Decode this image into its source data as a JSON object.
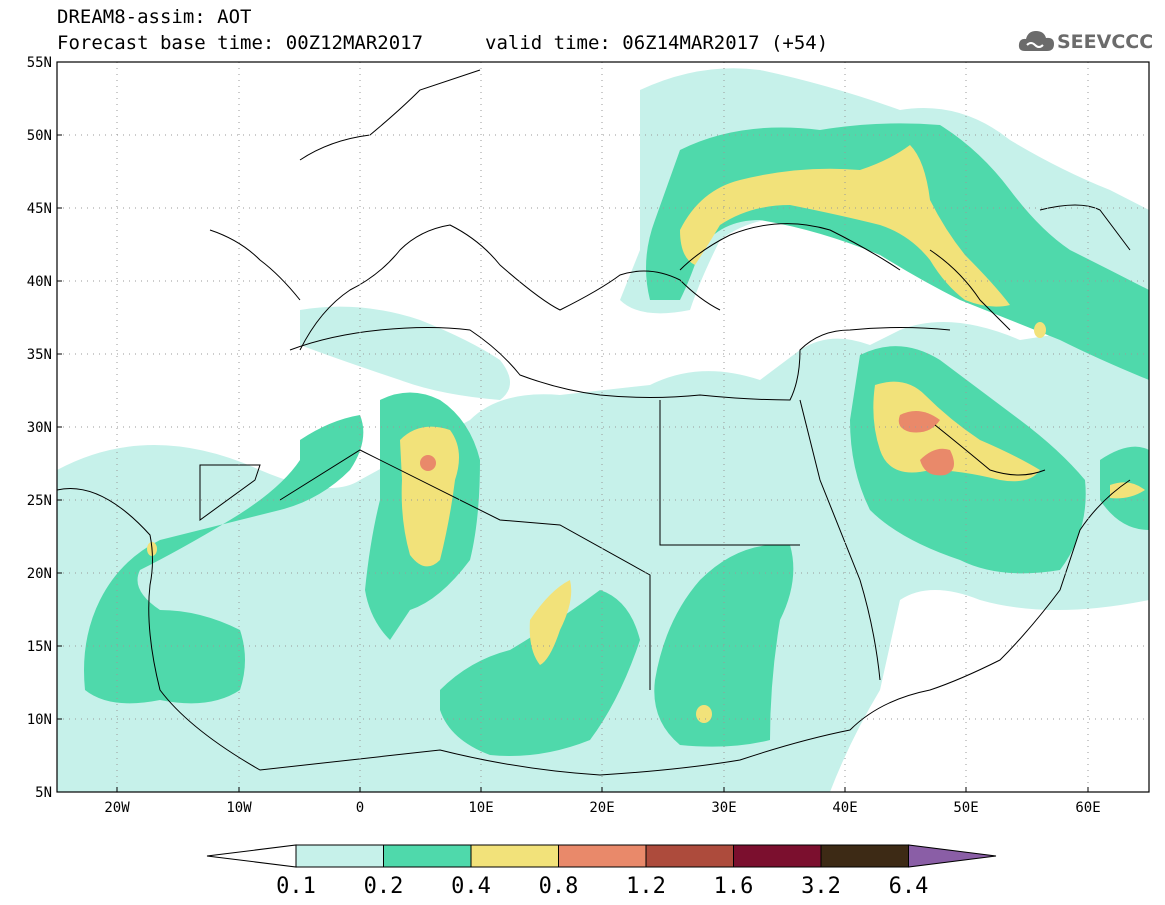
{
  "header": {
    "title": "DREAM8-assim: AOT",
    "base_time": "Forecast base time: 00Z12MAR2017",
    "valid_time": "valid time: 06Z14MAR2017 (+54)",
    "logo_text": "SEEVCCC"
  },
  "map": {
    "projection": "lat-lon",
    "lon_range": [
      -25,
      65
    ],
    "lat_range": [
      5,
      55
    ],
    "lat_ticks": [
      "55N",
      "50N",
      "45N",
      "40N",
      "35N",
      "30N",
      "25N",
      "20N",
      "15N",
      "10N",
      "5N"
    ],
    "lon_ticks": [
      "20W",
      "10W",
      "0",
      "10E",
      "20E",
      "30E",
      "40E",
      "50E",
      "60E"
    ],
    "gridlines": "dotted"
  },
  "colorbar": {
    "labels": [
      "0.1",
      "0.2",
      "0.4",
      "0.8",
      "1.2",
      "1.6",
      "3.2",
      "6.4"
    ],
    "colors": [
      "#ffffff",
      "#c6f1ea",
      "#4fd9ab",
      "#f2e27a",
      "#e9896a",
      "#ad4b3c",
      "#7b0f2e",
      "#3d2a15",
      "#8a5ea6"
    ]
  }
}
